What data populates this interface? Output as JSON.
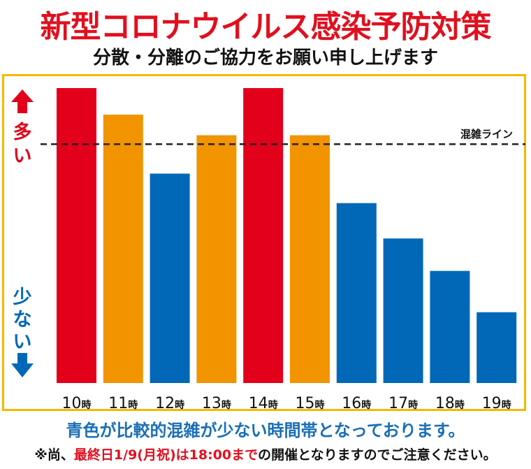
{
  "header": {
    "title": "新型コロナウイルス感染予防対策",
    "subtitle": "分散・分離のご協力をお願い申し上げます"
  },
  "legend": {
    "many_label": "多い",
    "few_label": "少ない",
    "congestion_line_label": "混雑ライン"
  },
  "chart_data": {
    "type": "bar",
    "categories": [
      "10時",
      "11時",
      "12時",
      "13時",
      "14時",
      "15時",
      "16時",
      "17時",
      "18時",
      "19時"
    ],
    "values": [
      100,
      91,
      71,
      84,
      100,
      84,
      61,
      49,
      38,
      24
    ],
    "bar_colors": [
      "#e2001a",
      "#f19400",
      "#0068b7",
      "#f19400",
      "#e2001a",
      "#f19400",
      "#0068b7",
      "#0068b7",
      "#0068b7",
      "#0068b7"
    ],
    "congestion_line": 81,
    "ylim": [
      0,
      100
    ],
    "grid": false,
    "title": "",
    "xlabel": "",
    "ylabel": ""
  },
  "colors": {
    "red": "#e2001a",
    "orange": "#f19400",
    "blue": "#0068b7",
    "frame": "#f5b800"
  },
  "footer": {
    "note_main": "青色が比較的混雑が少ない時間帯となっております。",
    "note_prefix": "※尚、",
    "note_highlight": "最終日1/9(月祝)は18:00まで",
    "note_suffix": "の開催となりますのでご注意ください。"
  }
}
